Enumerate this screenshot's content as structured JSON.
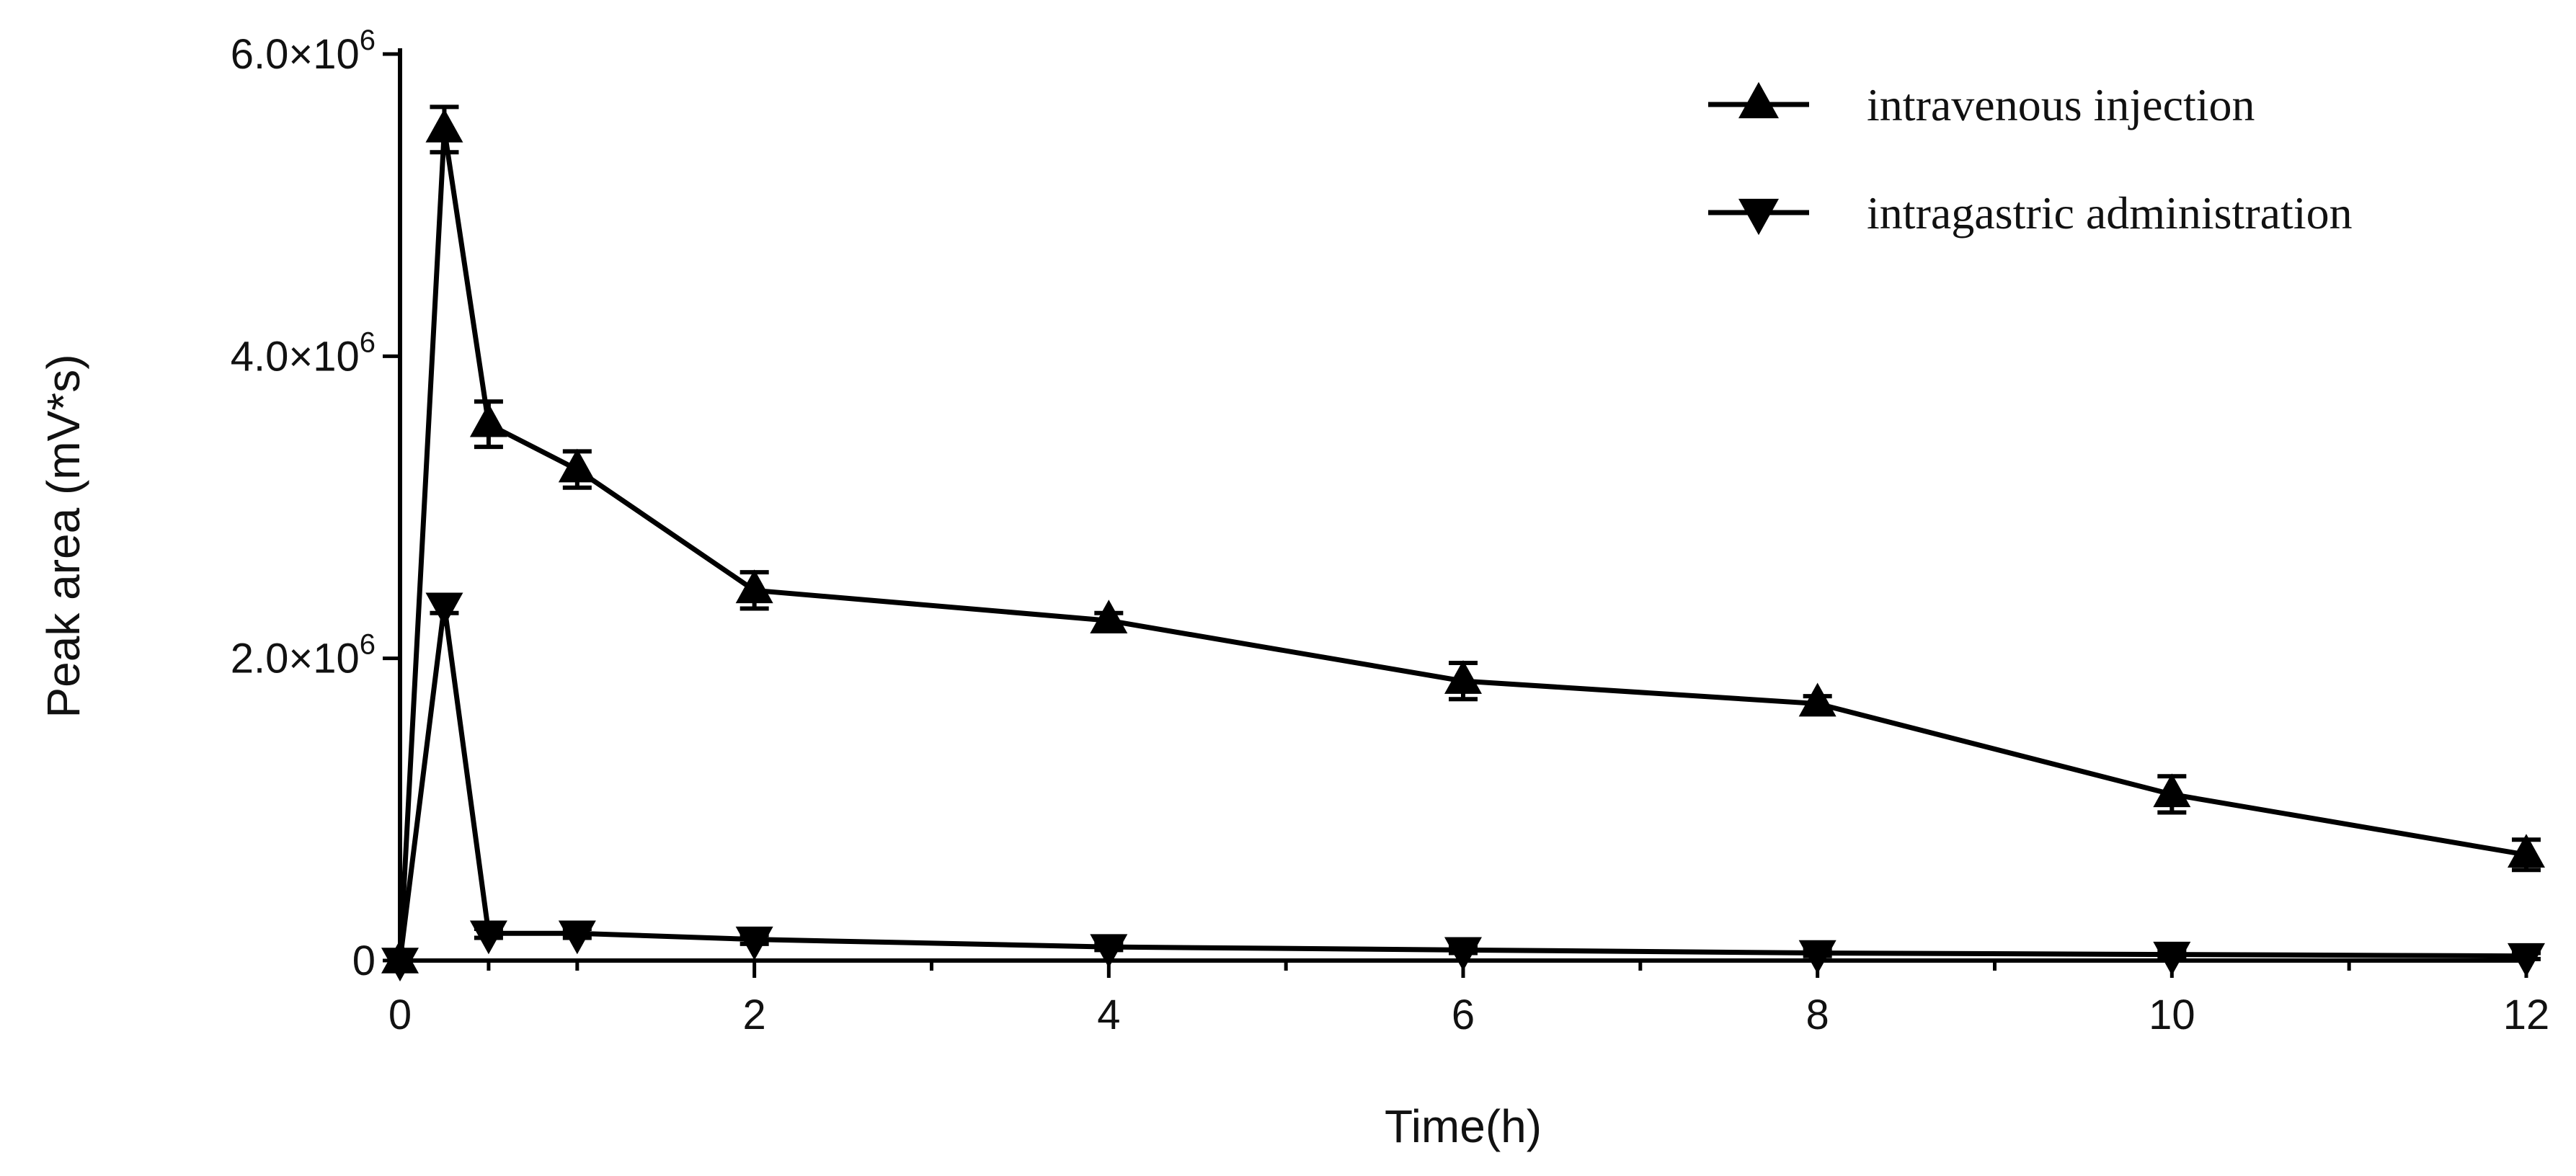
{
  "chart_data": {
    "type": "line",
    "xlabel": "Time(h)",
    "ylabel": "Peak area (mV*s)",
    "xlim": [
      0,
      12
    ],
    "ylim": [
      0,
      6000000
    ],
    "x_ticks": [
      0,
      2,
      4,
      6,
      8,
      10,
      12
    ],
    "x_tick_labels": [
      "0",
      "2",
      "4",
      "6",
      "8",
      "10",
      "12"
    ],
    "x_minor_ticks": [
      0.5,
      1,
      3,
      5,
      7,
      9,
      11
    ],
    "y_ticks": [
      0,
      2000000,
      4000000,
      6000000
    ],
    "y_tick_labels": [
      {
        "base": "0",
        "exp": ""
      },
      {
        "base": "2.0×10",
        "exp": "6"
      },
      {
        "base": "4.0×10",
        "exp": "6"
      },
      {
        "base": "6.0×10",
        "exp": "6"
      }
    ],
    "grid": false,
    "legend_position": "top-right",
    "x": [
      0,
      0.25,
      0.5,
      1,
      2,
      4,
      6,
      8,
      10,
      12
    ],
    "series": [
      {
        "name": "intravenous injection",
        "marker": "triangle-up",
        "color": "#000000",
        "values": [
          0,
          5500000,
          3550000,
          3250000,
          2450000,
          2250000,
          1850000,
          1700000,
          1100000,
          700000
        ],
        "errors": [
          0,
          150000,
          150000,
          120000,
          120000,
          50000,
          120000,
          50000,
          120000,
          100000
        ]
      },
      {
        "name": "intragastric administration",
        "marker": "triangle-down",
        "color": "#000000",
        "values": [
          0,
          2350000,
          180000,
          180000,
          140000,
          90000,
          70000,
          50000,
          40000,
          30000
        ],
        "errors": [
          0,
          50000,
          30000,
          30000,
          30000,
          20000,
          20000,
          20000,
          20000,
          20000
        ]
      }
    ]
  }
}
